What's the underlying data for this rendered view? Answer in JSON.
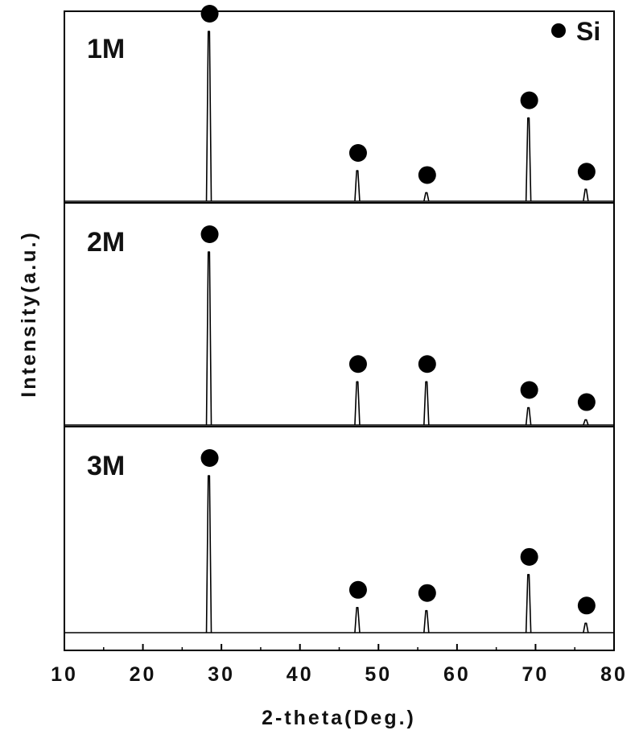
{
  "chart_data": {
    "type": "line",
    "title": "",
    "xlabel": "2-theta(Deg.)",
    "ylabel": "Intensity(a.u.)",
    "xlim": [
      10,
      80
    ],
    "x_ticks": [
      10,
      20,
      30,
      40,
      50,
      60,
      70,
      80
    ],
    "x_tick_labels": [
      "10",
      "20",
      "30",
      "40",
      "50",
      "60",
      "70",
      "80"
    ],
    "y_ticks_shown": false,
    "grid": false,
    "legend": {
      "position": "top-right",
      "marker": "filled-circle",
      "label": "Si",
      "color": "#000000"
    },
    "line_color": "#000000",
    "y_scale_note": "relative intensity, 0-100",
    "panels": [
      {
        "label": "1M",
        "peaks": [
          {
            "x": 28.4,
            "intensity": 100,
            "marked": true
          },
          {
            "x": 47.3,
            "intensity": 18,
            "marked": true
          },
          {
            "x": 56.1,
            "intensity": 5,
            "marked": true
          },
          {
            "x": 69.1,
            "intensity": 49,
            "marked": true
          },
          {
            "x": 76.4,
            "intensity": 7,
            "marked": true
          }
        ]
      },
      {
        "label": "2M",
        "peaks": [
          {
            "x": 28.4,
            "intensity": 100,
            "marked": true
          },
          {
            "x": 47.3,
            "intensity": 25,
            "marked": true
          },
          {
            "x": 56.1,
            "intensity": 25,
            "marked": true
          },
          {
            "x": 69.1,
            "intensity": 10,
            "marked": true
          },
          {
            "x": 76.4,
            "intensity": 3,
            "marked": true
          }
        ]
      },
      {
        "label": "3M",
        "peaks": [
          {
            "x": 28.4,
            "intensity": 100,
            "marked": true
          },
          {
            "x": 47.3,
            "intensity": 16,
            "marked": true
          },
          {
            "x": 56.1,
            "intensity": 14,
            "marked": true
          },
          {
            "x": 69.1,
            "intensity": 37,
            "marked": true
          },
          {
            "x": 76.4,
            "intensity": 6,
            "marked": true
          }
        ]
      }
    ]
  }
}
